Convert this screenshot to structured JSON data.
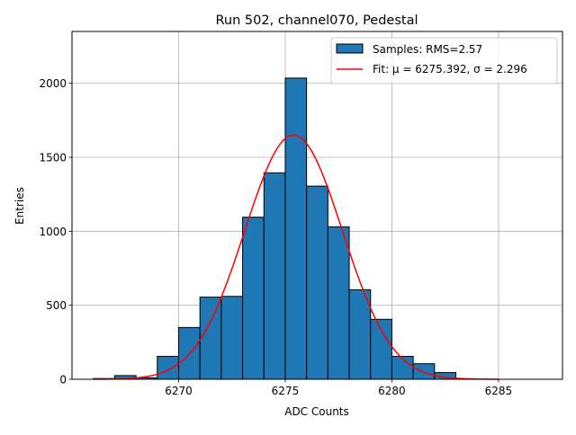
{
  "chart_data": {
    "type": "histogram",
    "title": "Run 502, channel070, Pedestal",
    "xlabel": "ADC Counts",
    "ylabel": "Entries",
    "xlim": [
      6265.0,
      6288.0
    ],
    "ylim": [
      0,
      2350
    ],
    "xticks": [
      6270,
      6275,
      6280,
      6285
    ],
    "yticks": [
      0,
      500,
      1000,
      1500,
      2000
    ],
    "grid": true,
    "legend_position": "top-right",
    "bin_width": 1,
    "bins": [
      {
        "x0": 6266,
        "x1": 6267,
        "value": 5
      },
      {
        "x0": 6267,
        "x1": 6268,
        "value": 25
      },
      {
        "x0": 6268,
        "x1": 6269,
        "value": 10
      },
      {
        "x0": 6269,
        "x1": 6270,
        "value": 155
      },
      {
        "x0": 6270,
        "x1": 6271,
        "value": 350
      },
      {
        "x0": 6271,
        "x1": 6272,
        "value": 555
      },
      {
        "x0": 6272,
        "x1": 6273,
        "value": 560
      },
      {
        "x0": 6273,
        "x1": 6274,
        "value": 1095
      },
      {
        "x0": 6274,
        "x1": 6275,
        "value": 1395
      },
      {
        "x0": 6275,
        "x1": 6276,
        "value": 2035
      },
      {
        "x0": 6276,
        "x1": 6277,
        "value": 1305
      },
      {
        "x0": 6277,
        "x1": 6278,
        "value": 1030
      },
      {
        "x0": 6278,
        "x1": 6279,
        "value": 605
      },
      {
        "x0": 6279,
        "x1": 6280,
        "value": 405
      },
      {
        "x0": 6280,
        "x1": 6281,
        "value": 155
      },
      {
        "x0": 6281,
        "x1": 6282,
        "value": 105
      },
      {
        "x0": 6282,
        "x1": 6283,
        "value": 45
      }
    ],
    "fit": {
      "mu": 6275.392,
      "sigma": 2.296,
      "amplitude": 1650,
      "x_range": [
        6266.0,
        6285.0
      ]
    },
    "series": [
      {
        "name": "Samples: RMS=2.57",
        "kind": "histogram",
        "color": "#1f77b4",
        "edge_color": "#000000"
      },
      {
        "name": "Fit: μ = 6275.392, σ = 2.296",
        "kind": "line",
        "color": "#ff0000"
      }
    ],
    "colors": {
      "bar": "#1f77b4",
      "bar_edge": "#000000",
      "fit_line": "#ff0000",
      "grid": "#b0b0b0",
      "axes": "#000000"
    }
  }
}
